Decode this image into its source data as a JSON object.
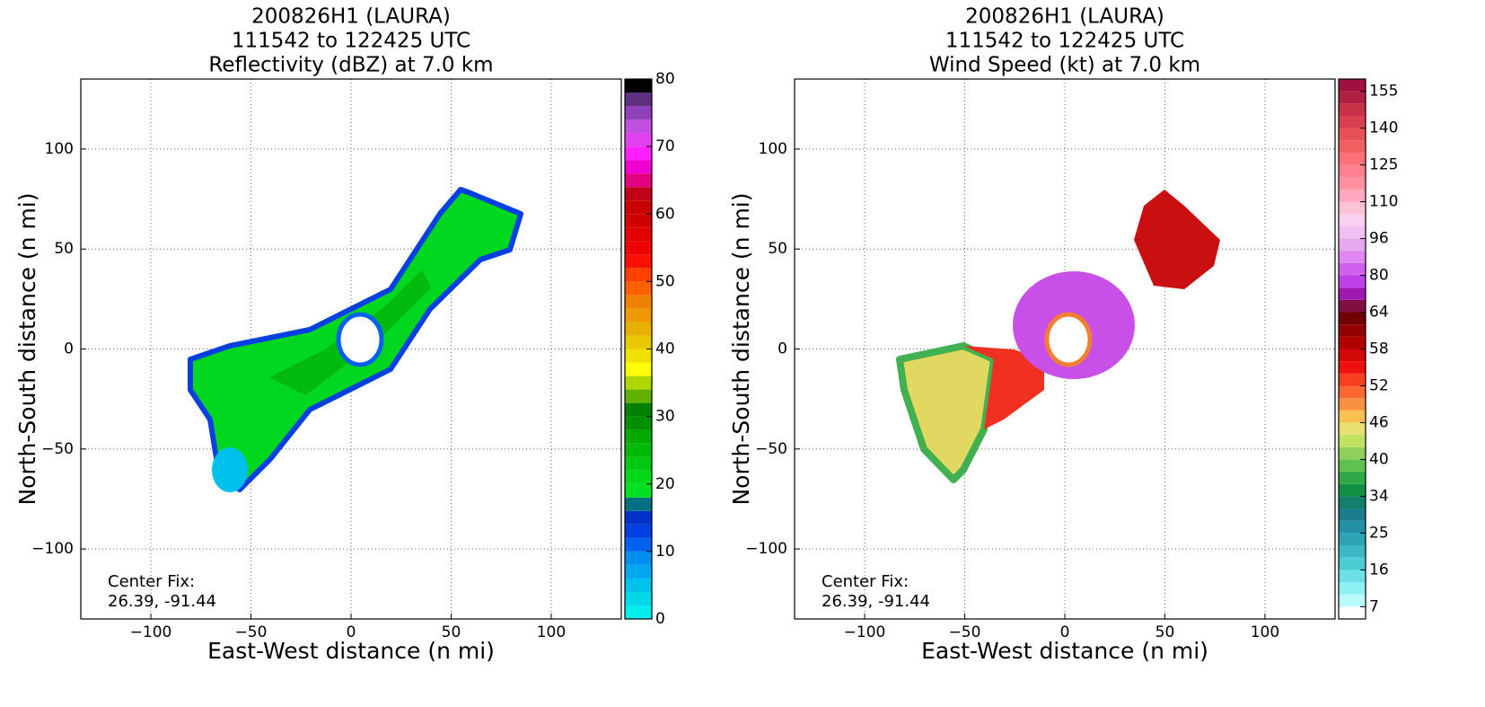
{
  "chart_data": [
    {
      "type": "heatmap",
      "title": [
        "200826H1 (LAURA)",
        "111542 to 122425 UTC",
        "Reflectivity (dBZ) at 7.0 km"
      ],
      "xlabel": "East-West distance (n mi)",
      "ylabel": "North-South distance (n mi)",
      "xlim": [
        -135,
        135
      ],
      "ylim": [
        -135,
        135
      ],
      "xticks": [
        {
          "value": -100,
          "label": "−100"
        },
        {
          "value": -50,
          "label": "−50"
        },
        0,
        50,
        100
      ],
      "yticks": [
        {
          "value": -100,
          "label": "−100"
        },
        {
          "value": -50,
          "label": "−50"
        },
        0,
        50,
        100
      ],
      "grid": true,
      "annotation": [
        "Center Fix:",
        "26.39, -91.44"
      ],
      "colorbar": {
        "clim": [
          0,
          80
        ],
        "ticks": [
          0,
          10,
          20,
          30,
          40,
          50,
          60,
          70,
          80
        ],
        "colors": [
          "#00eeee",
          "#00d8e8",
          "#00c0ec",
          "#00a8f0",
          "#0090f0",
          "#0060f0",
          "#0040e0",
          "#0030c8",
          "#007080",
          "#00e020",
          "#00d818",
          "#00c810",
          "#00b808",
          "#00a800",
          "#009000",
          "#008000",
          "#60b000",
          "#b0d800",
          "#ffff00",
          "#f0e000",
          "#e8c800",
          "#e8b000",
          "#f09800",
          "#f08000",
          "#ff6000",
          "#ff4000",
          "#ff1000",
          "#f00000",
          "#e00000",
          "#d00000",
          "#c80000",
          "#c00018",
          "#e00080",
          "#f000d0",
          "#ff20ff",
          "#e040f0",
          "#c050e0",
          "#9040b8",
          "#603080",
          "#000000"
        ]
      }
    },
    {
      "type": "heatmap",
      "title": [
        "200826H1 (LAURA)",
        "111542 to 122425 UTC",
        "Wind Speed (kt) at 7.0 km"
      ],
      "xlabel": "East-West distance (n mi)",
      "ylabel": "North-South distance (n mi)",
      "xlim": [
        -135,
        135
      ],
      "ylim": [
        -135,
        135
      ],
      "xticks": [
        {
          "value": -100,
          "label": "−100"
        },
        {
          "value": -50,
          "label": "−50"
        },
        0,
        50,
        100
      ],
      "yticks": [
        {
          "value": -100,
          "label": "−100"
        },
        {
          "value": -50,
          "label": "−50"
        },
        0,
        50,
        100
      ],
      "grid": true,
      "annotation": [
        "Center Fix:",
        "26.39, -91.44"
      ],
      "colorbar": {
        "bounds": [
          4,
          7,
          10,
          13,
          16,
          19,
          22,
          25,
          28,
          31,
          34,
          36,
          38,
          40,
          42,
          44,
          46,
          48,
          50,
          52,
          54,
          56,
          58,
          60,
          62,
          64,
          69,
          75,
          80,
          85,
          91,
          96,
          101,
          105,
          110,
          115,
          120,
          125,
          130,
          135,
          140,
          145,
          150,
          155,
          160
        ],
        "ticks": [
          7,
          16,
          25,
          34,
          40,
          46,
          52,
          58,
          64,
          80,
          96,
          110,
          125,
          140,
          155
        ],
        "colors": [
          "#ffffff",
          "#b8fafa",
          "#8ef0f0",
          "#6ce0e4",
          "#4cccd4",
          "#3cb8c4",
          "#2ca4b4",
          "#2090a4",
          "#187c8c",
          "#10806c",
          "#109040",
          "#30a848",
          "#60c050",
          "#90d058",
          "#c0e060",
          "#e8e070",
          "#f8c050",
          "#f89040",
          "#f86830",
          "#f84020",
          "#f01010",
          "#d00808",
          "#b00000",
          "#900000",
          "#700000",
          "#801040",
          "#a018b0",
          "#c040e8",
          "#d060f0",
          "#e088f0",
          "#e8a8f0",
          "#f0c0f0",
          "#f8d0f0",
          "#ffc0d8",
          "#ffa8c0",
          "#ff90a0",
          "#ff8090",
          "#ff7078",
          "#f06060",
          "#e85058",
          "#d84050",
          "#c83048",
          "#b02040",
          "#a01040"
        ]
      }
    }
  ]
}
